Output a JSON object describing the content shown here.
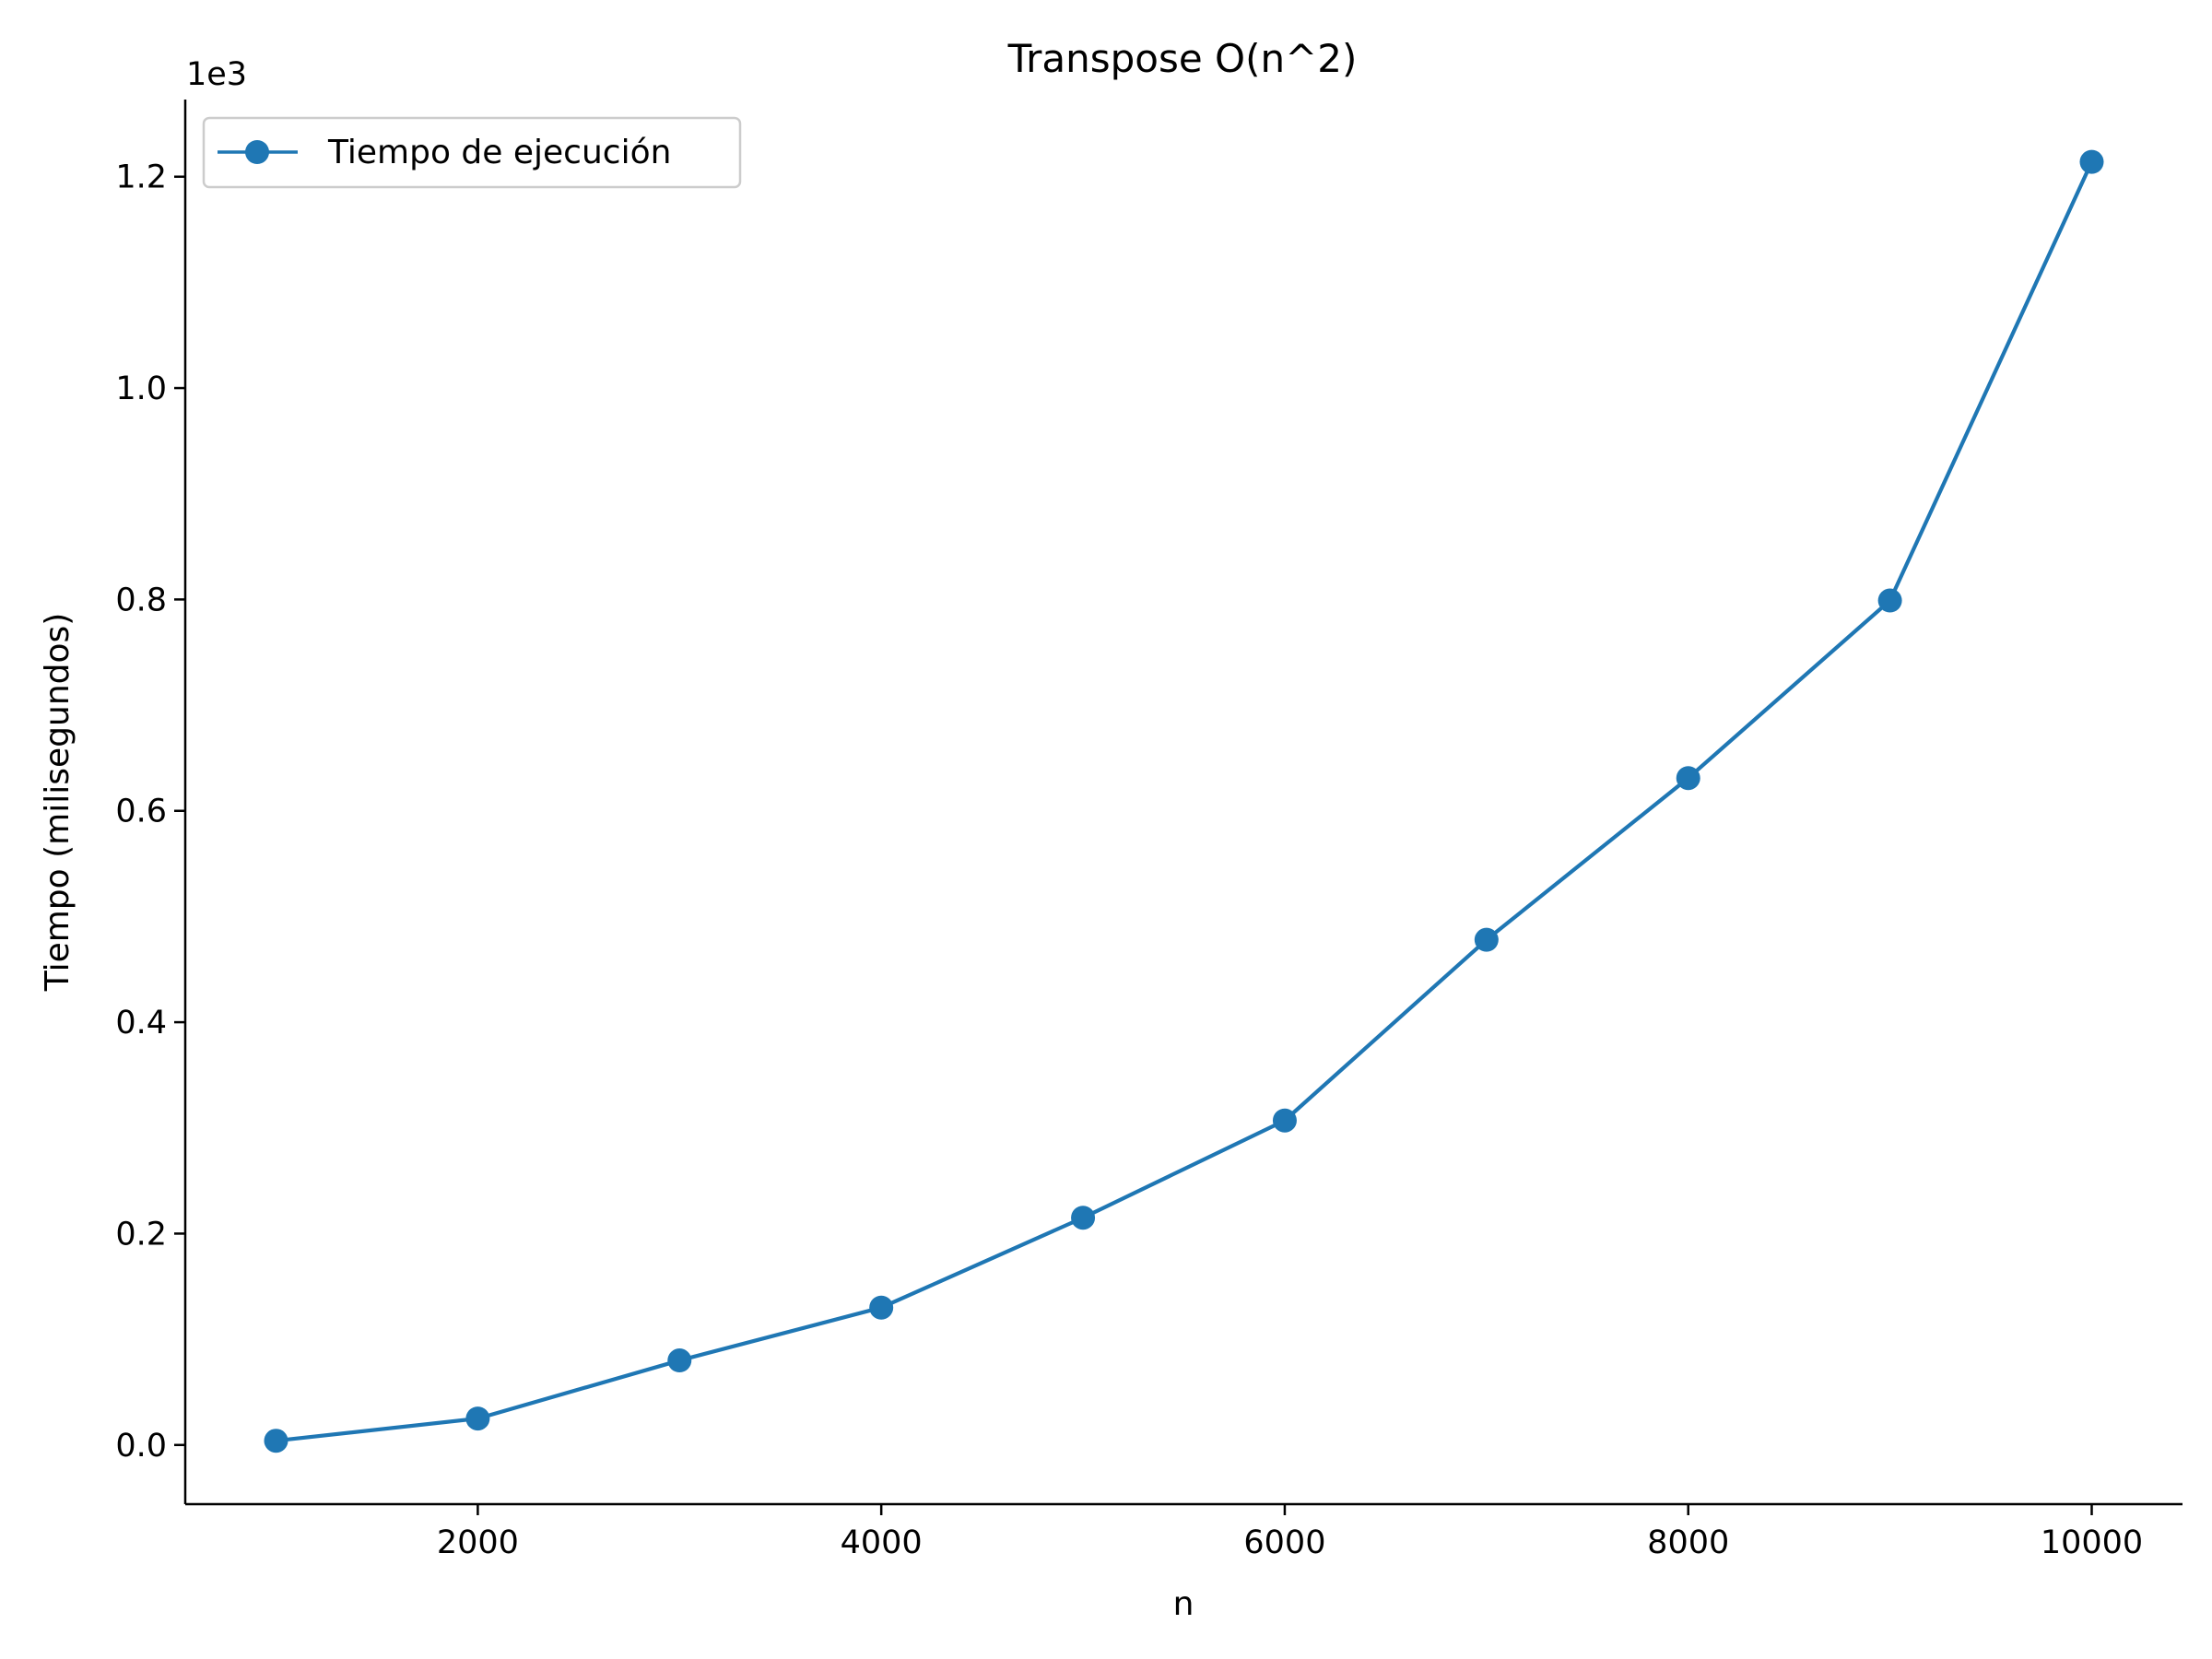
{
  "chart_data": {
    "type": "line",
    "title": "Transpose O(n^2)",
    "xlabel": "n",
    "ylabel": "Tiempo (milisegundos)",
    "y_offset_label": "1e3",
    "y_scale_factor": 1000,
    "xlim": [
      550,
      10450
    ],
    "ylim": [
      -56,
      1273
    ],
    "x_ticks": [
      2000,
      4000,
      6000,
      8000,
      10000
    ],
    "y_ticks": [
      0,
      200,
      400,
      600,
      800,
      1000,
      1200
    ],
    "y_tick_labels": [
      "0.0",
      "0.2",
      "0.4",
      "0.6",
      "0.8",
      "1.0",
      "1.2"
    ],
    "grid": false,
    "legend_position": "upper-left",
    "series": [
      {
        "name": "Tiempo de ejecución",
        "color": "#1f77b4",
        "marker": "circle",
        "x": [
          1000,
          2000,
          3000,
          4000,
          5000,
          6000,
          7000,
          8000,
          9000,
          10000
        ],
        "y": [
          4,
          25,
          80,
          130,
          215,
          307,
          478,
          631,
          799,
          1214
        ]
      }
    ]
  }
}
